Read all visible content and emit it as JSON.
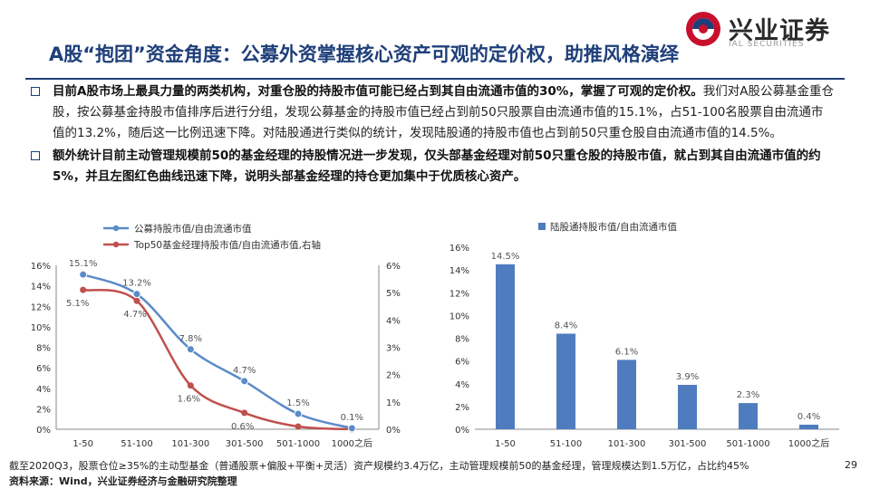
{
  "brand": {
    "name_cn": "兴业证券",
    "name_en": "IAL SECURITIES",
    "colors": {
      "red": "#c8102e",
      "navy": "#1f3f7a"
    }
  },
  "title": "A股“抱团”资金角度：公募外资掌握核心资产可观的定价权，助推风格演绎",
  "bullets": [
    {
      "bold": "目前A股市场上最具力量的两类机构，对重仓股的持股市值可能已经占到其自由流通市值的30%，掌握了可观的定价权。",
      "normal": "我们对A股公募基金重仓股，按公募基金持股市值排序后进行分组，发现公募基金的持股市值已经占到前50只股票自由流通市值的15.1%，占51-100名股票自由流通市值的13.2%，随后这一比例迅速下降。对陆股通进行类似的统计，发现陆股通的持股市值也占到前50只重仓股自由流通市值的14.5%。"
    },
    {
      "bold": "额外统计目前主动管理规模前50的基金经理的持股情况进一步发现，仅头部基金经理对前50只重仓股的持股市值，就占到其自由流通市值的约5%，并且左图红色曲线迅速下降，说明头部基金经理的持仓更加集中于优质核心资产。",
      "normal": ""
    }
  ],
  "chart_data": [
    {
      "type": "line",
      "categories": [
        "1-50",
        "51-100",
        "101-300",
        "301-500",
        "501-1000",
        "1000之后"
      ],
      "series": [
        {
          "name": "公募持股市值/自由流通市值",
          "axis": "left",
          "color": "#5b8bc8",
          "values": [
            15.1,
            13.2,
            7.8,
            4.7,
            1.5,
            0.1
          ],
          "labels": [
            "15.1%",
            "13.2%",
            "7.8%",
            "4.7%",
            "1.5%",
            "0.1%"
          ]
        },
        {
          "name": "Top50基金经理持股市值/自由流通市值,右轴",
          "axis": "right",
          "color": "#c0504d",
          "values": [
            5.1,
            4.7,
            1.6,
            0.6,
            0.1,
            0.0
          ],
          "labels": [
            "5.1%",
            "4.7%",
            "1.6%",
            "0.6%",
            "",
            ""
          ]
        }
      ],
      "y_left": {
        "range": [
          0,
          16
        ],
        "ticks": [
          "0%",
          "2%",
          "4%",
          "6%",
          "8%",
          "10%",
          "12%",
          "14%",
          "16%"
        ]
      },
      "y_right": {
        "range": [
          0,
          6
        ],
        "ticks": [
          "0%",
          "1%",
          "2%",
          "3%",
          "4%",
          "5%",
          "6%"
        ]
      },
      "grid": false,
      "legend": "top-left"
    },
    {
      "type": "bar",
      "categories": [
        "1-50",
        "51-100",
        "101-300",
        "301-500",
        "501-1000",
        "1000之后"
      ],
      "series": [
        {
          "name": "陆股通持股市值/自由流通市值",
          "color": "#4f7cbf",
          "values": [
            14.5,
            8.4,
            6.1,
            3.9,
            2.3,
            0.4
          ],
          "labels": [
            "14.5%",
            "8.4%",
            "6.1%",
            "3.9%",
            "2.3%",
            "0.4%"
          ]
        }
      ],
      "ylim": [
        0,
        16
      ],
      "yticks": [
        "0%",
        "2%",
        "4%",
        "6%",
        "8%",
        "10%",
        "12%",
        "14%",
        "16%"
      ],
      "grid": false,
      "legend": "top"
    }
  ],
  "footer": {
    "note": "截至2020Q3，股票仓位≥35%的主动型基金（普通股票+偏股+平衡+灵活）资产规模约3.4万亿，主动管理规模前50的基金经理，管理规模达到1.5万亿，占比约45%",
    "source": "资料来源：Wind，兴业证券经济与金融研究院整理",
    "page": "29"
  }
}
